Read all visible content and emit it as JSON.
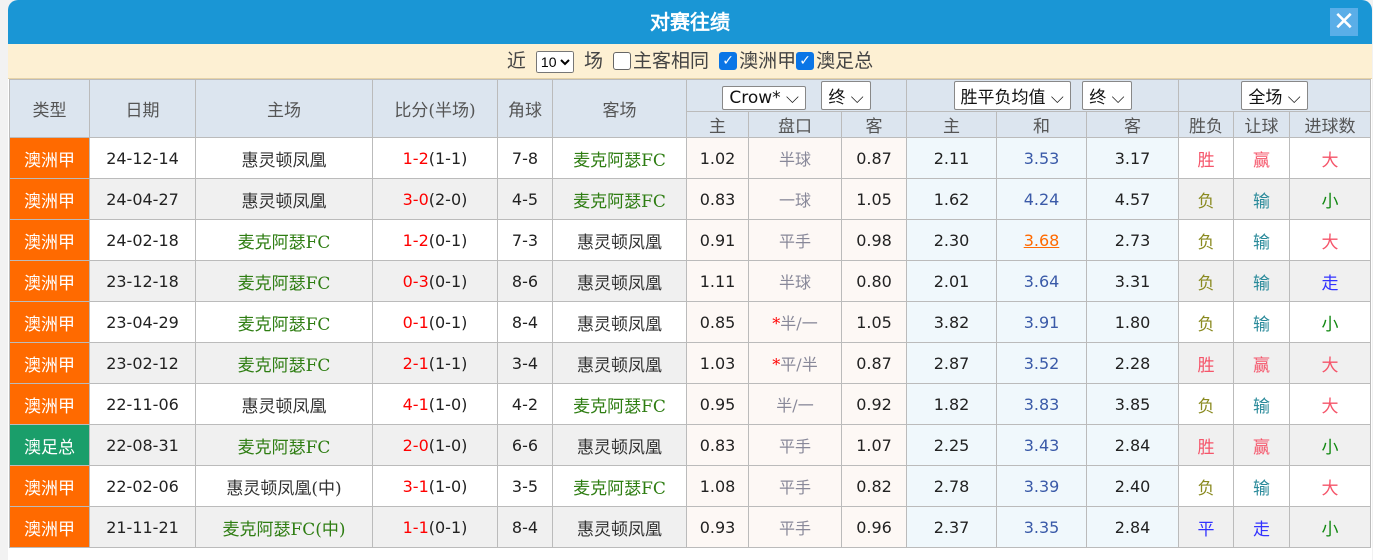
{
  "title": "对赛往绩",
  "filter": {
    "prefix": "近",
    "count": "10",
    "suffix": "场",
    "same_home_away": "主客相同",
    "same_checked": false,
    "league1": "澳洲甲",
    "league1_checked": true,
    "league2": "澳足总",
    "league2_checked": true
  },
  "headers": {
    "type": "类型",
    "date": "日期",
    "home": "主场",
    "score": "比分(半场)",
    "corner": "角球",
    "away": "客场",
    "asian_company": "Crow*",
    "asian_stage": "终",
    "euro_company": "胜平负均值",
    "euro_stage": "终",
    "result_scope": "全场",
    "sub": [
      "主",
      "盘口",
      "客",
      "主",
      "和",
      "客",
      "胜负",
      "让球",
      "进球数"
    ]
  },
  "rows": [
    {
      "type": "澳洲甲",
      "date": "24-12-14",
      "home": "惠灵顿凤凰",
      "home_side": "hm",
      "ft": "1-2",
      "ht": "(1-1)",
      "corner": "7-8",
      "away": "麦克阿瑟FC",
      "away_side": "aw",
      "ah": "1.02",
      "line": "半球",
      "star": "",
      "aa": "0.87",
      "eh": "2.11",
      "ed": "3.53",
      "ea": "3.17",
      "wl": "胜",
      "hc": "赢",
      "ou": "大"
    },
    {
      "type": "澳洲甲",
      "date": "24-04-27",
      "home": "惠灵顿凤凰",
      "home_side": "hm",
      "ft": "3-0",
      "ht": "(2-0)",
      "corner": "4-5",
      "away": "麦克阿瑟FC",
      "away_side": "aw",
      "ah": "0.83",
      "line": "一球",
      "star": "",
      "aa": "1.05",
      "eh": "1.62",
      "ed": "4.24",
      "ea": "4.57",
      "wl": "负",
      "hc": "输",
      "ou": "小"
    },
    {
      "type": "澳洲甲",
      "date": "24-02-18",
      "home": "麦克阿瑟FC",
      "home_side": "aw",
      "ft": "1-2",
      "ht": "(0-1)",
      "corner": "7-3",
      "away": "惠灵顿凤凰",
      "away_side": "hm",
      "ah": "0.91",
      "line": "平手",
      "star": "",
      "aa": "0.98",
      "eh": "2.30",
      "ed": "3.68",
      "ed_highlight": true,
      "ea": "2.73",
      "wl": "负",
      "hc": "输",
      "ou": "大"
    },
    {
      "type": "澳洲甲",
      "date": "23-12-18",
      "home": "麦克阿瑟FC",
      "home_side": "aw",
      "ft": "0-3",
      "ht": "(0-1)",
      "corner": "8-6",
      "away": "惠灵顿凤凰",
      "away_side": "hm",
      "ah": "1.11",
      "line": "半球",
      "star": "",
      "aa": "0.80",
      "eh": "2.01",
      "ed": "3.64",
      "ea": "3.31",
      "wl": "负",
      "hc": "输",
      "ou": "走"
    },
    {
      "type": "澳洲甲",
      "date": "23-04-29",
      "home": "麦克阿瑟FC",
      "home_side": "aw",
      "ft": "0-1",
      "ht": "(0-1)",
      "corner": "8-4",
      "away": "惠灵顿凤凰",
      "away_side": "hm",
      "ah": "0.85",
      "line": "半/一",
      "star": "*",
      "aa": "1.05",
      "eh": "3.82",
      "ed": "3.91",
      "ea": "1.80",
      "wl": "负",
      "hc": "输",
      "ou": "小"
    },
    {
      "type": "澳洲甲",
      "date": "23-02-12",
      "home": "麦克阿瑟FC",
      "home_side": "aw",
      "ft": "2-1",
      "ht": "(1-1)",
      "corner": "3-4",
      "away": "惠灵顿凤凰",
      "away_side": "hm",
      "ah": "1.03",
      "line": "平/半",
      "star": "*",
      "aa": "0.87",
      "eh": "2.87",
      "ed": "3.52",
      "ea": "2.28",
      "wl": "胜",
      "hc": "赢",
      "ou": "大"
    },
    {
      "type": "澳洲甲",
      "date": "22-11-06",
      "home": "惠灵顿凤凰",
      "home_side": "hm",
      "ft": "4-1",
      "ht": "(1-0)",
      "corner": "4-2",
      "away": "麦克阿瑟FC",
      "away_side": "aw",
      "ah": "0.95",
      "line": "半/一",
      "star": "",
      "aa": "0.92",
      "eh": "1.82",
      "ed": "3.83",
      "ea": "3.85",
      "wl": "负",
      "hc": "输",
      "ou": "大"
    },
    {
      "type": "澳足总",
      "date": "22-08-31",
      "home": "麦克阿瑟FC",
      "home_side": "aw",
      "ft": "2-0",
      "ht": "(1-0)",
      "corner": "6-6",
      "away": "惠灵顿凤凰",
      "away_side": "hm",
      "ah": "0.83",
      "line": "平手",
      "star": "",
      "aa": "1.07",
      "eh": "2.25",
      "ed": "3.43",
      "ea": "2.84",
      "wl": "胜",
      "hc": "赢",
      "ou": "小"
    },
    {
      "type": "澳洲甲",
      "date": "22-02-06",
      "home": "惠灵顿凤凰(中)",
      "home_side": "hm",
      "ft": "3-1",
      "ht": "(1-0)",
      "corner": "3-5",
      "away": "麦克阿瑟FC",
      "away_side": "aw",
      "ah": "1.08",
      "line": "平手",
      "star": "",
      "aa": "0.82",
      "eh": "2.78",
      "ed": "3.39",
      "ea": "2.40",
      "wl": "负",
      "hc": "输",
      "ou": "大"
    },
    {
      "type": "澳洲甲",
      "date": "21-11-21",
      "home": "麦克阿瑟FC(中)",
      "home_side": "aw",
      "ft": "1-1",
      "ht": "(0-1)",
      "corner": "8-4",
      "away": "惠灵顿凤凰",
      "away_side": "hm",
      "ah": "0.93",
      "line": "平手",
      "star": "",
      "aa": "0.96",
      "eh": "2.37",
      "ed": "3.35",
      "ea": "2.84",
      "wl": "平",
      "hc": "走",
      "ou": "小"
    }
  ]
}
